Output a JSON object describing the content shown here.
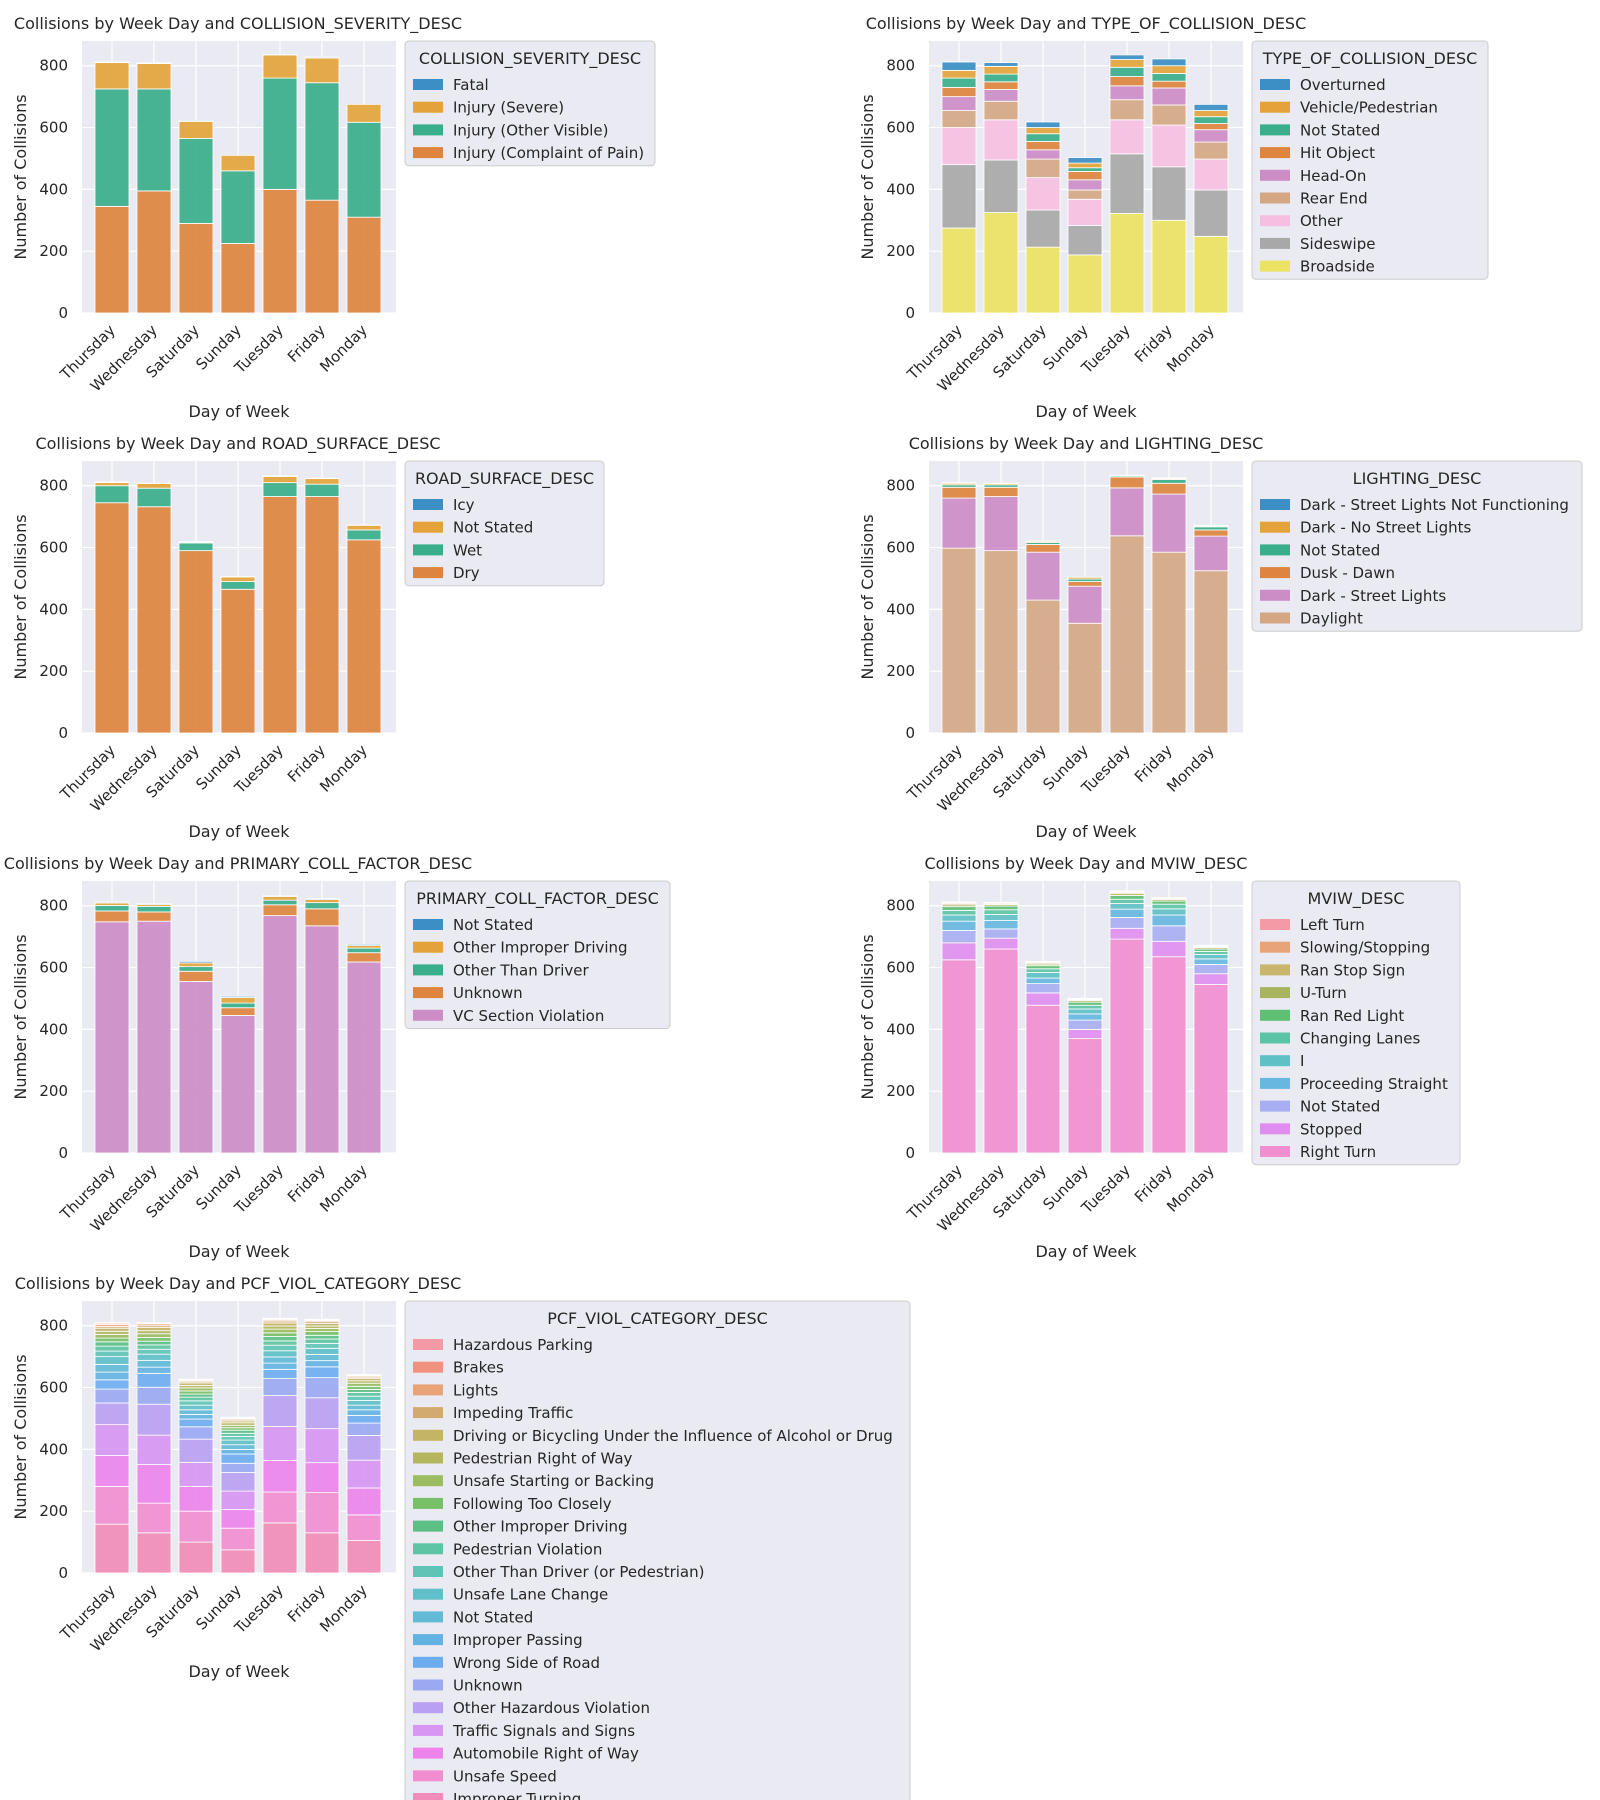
{
  "palette": {
    "severity": [
      "#3b8fc4",
      "#e3a33a",
      "#3aae8a",
      "#dd843f"
    ],
    "collision_type": [
      "#3b8fc4",
      "#e3a33a",
      "#3aae8a",
      "#dd843f",
      "#cc8dc7",
      "#d4a784",
      "#f6bfe2",
      "#a8a8a8",
      "#ece264"
    ],
    "surface": [
      "#3b8fc4",
      "#e3a33a",
      "#3aae8a",
      "#dd843f"
    ],
    "lighting": [
      "#3b8fc4",
      "#e3a33a",
      "#3aae8a",
      "#dd843f",
      "#cc8dc7",
      "#d4a784"
    ],
    "pcf": [
      "#3b8fc4",
      "#e3a33a",
      "#3aae8a",
      "#dd843f",
      "#cc8dc7"
    ],
    "mviw": [
      "#f39aa6",
      "#e8a378",
      "#c9b56e",
      "#a9b55e",
      "#5fbf73",
      "#5cc3a6",
      "#5fc0c6",
      "#67b7e0",
      "#a8aef2",
      "#df8ef0",
      "#f08ed0"
    ],
    "viol": [
      "#f39aa6",
      "#f1917f",
      "#e8a378",
      "#d2aa6f",
      "#c3b466",
      "#b3b65f",
      "#9bbc5f",
      "#77c068",
      "#5cbf86",
      "#5ec4a3",
      "#5fc4b6",
      "#60bfc8",
      "#62bad6",
      "#63b3e2",
      "#6eacf0",
      "#9aa9f2",
      "#b9a0f2",
      "#d696f2",
      "#ec84ec",
      "#f08ed0",
      "#f08cb6"
    ],
    "plot_bg": "#eaeaf2",
    "grid": "#ffffff",
    "legend_bg": "#eaeaf2",
    "legend_border": "#cccccc",
    "text": "#262626"
  },
  "chart_data": [
    {
      "type": "bar",
      "stacked": true,
      "title": "Collisions by Week Day and COLLISION_SEVERITY_DESC",
      "xlabel": "Day of Week",
      "ylabel": "Number of Collisions",
      "ylim": [
        0,
        880
      ],
      "yticks": [
        "0",
        "200",
        "400",
        "600",
        "800"
      ],
      "categories": [
        "Thursday",
        "Wednesday",
        "Saturday",
        "Sunday",
        "Tuesday",
        "Friday",
        "Monday"
      ],
      "legend_title": "COLLISION_SEVERITY_DESC",
      "legend_position": "right",
      "legend": [
        "Fatal",
        "Injury (Severe)",
        "Injury (Other Visible)",
        "Injury (Complaint of Pain)"
      ],
      "series": [
        {
          "name": "Injury (Complaint of Pain)",
          "values": [
            345,
            395,
            290,
            225,
            400,
            365,
            310
          ]
        },
        {
          "name": "Injury (Other Visible)",
          "values": [
            380,
            330,
            275,
            235,
            360,
            380,
            307
          ]
        },
        {
          "name": "Injury (Severe)",
          "values": [
            85,
            82,
            55,
            50,
            75,
            80,
            58
          ]
        },
        {
          "name": "Fatal",
          "values": [
            2,
            2,
            3,
            0,
            2,
            3,
            0
          ]
        }
      ]
    },
    {
      "type": "bar",
      "stacked": true,
      "title": "Collisions by Week Day and TYPE_OF_COLLISION_DESC",
      "xlabel": "Day of Week",
      "ylabel": "Number of Collisions",
      "ylim": [
        0,
        880
      ],
      "yticks": [
        "0",
        "200",
        "400",
        "600",
        "800"
      ],
      "categories": [
        "Thursday",
        "Wednesday",
        "Saturday",
        "Sunday",
        "Tuesday",
        "Friday",
        "Monday"
      ],
      "legend_title": "TYPE_OF_COLLISION_DESC",
      "legend_position": "right",
      "legend": [
        "Overturned",
        "Vehicle/Pedestrian",
        "Not Stated",
        "Hit Object",
        "Head-On",
        "Rear End",
        "Other",
        "Sideswipe",
        "Broadside"
      ],
      "series": [
        {
          "name": "Broadside",
          "values": [
            275,
            325,
            213,
            188,
            322,
            300,
            248
          ]
        },
        {
          "name": "Sideswipe",
          "values": [
            205,
            170,
            120,
            95,
            193,
            173,
            150
          ]
        },
        {
          "name": "Other",
          "values": [
            120,
            130,
            105,
            85,
            110,
            135,
            100
          ]
        },
        {
          "name": "Rear End",
          "values": [
            55,
            60,
            60,
            30,
            65,
            65,
            55
          ]
        },
        {
          "name": "Head-On",
          "values": [
            45,
            38,
            30,
            33,
            45,
            55,
            40
          ]
        },
        {
          "name": "Hit Object",
          "values": [
            30,
            25,
            27,
            27,
            30,
            22,
            20
          ]
        },
        {
          "name": "Not Stated",
          "values": [
            30,
            25,
            25,
            12,
            30,
            25,
            22
          ]
        },
        {
          "name": "Vehicle/Pedestrian",
          "values": [
            25,
            25,
            20,
            15,
            25,
            25,
            20
          ]
        },
        {
          "name": "Overturned",
          "values": [
            27,
            12,
            18,
            18,
            15,
            22,
            20
          ]
        }
      ]
    },
    {
      "type": "bar",
      "stacked": true,
      "title": "Collisions by Week Day and ROAD_SURFACE_DESC",
      "xlabel": "Day of Week",
      "ylabel": "Number of Collisions",
      "ylim": [
        0,
        880
      ],
      "yticks": [
        "0",
        "200",
        "400",
        "600",
        "800"
      ],
      "categories": [
        "Thursday",
        "Wednesday",
        "Saturday",
        "Sunday",
        "Tuesday",
        "Friday",
        "Monday"
      ],
      "legend_title": "ROAD_SURFACE_DESC",
      "legend_position": "right",
      "legend": [
        "Icy",
        "Not Stated",
        "Wet",
        "Dry"
      ],
      "series": [
        {
          "name": "Dry",
          "values": [
            745,
            732,
            590,
            465,
            765,
            765,
            625
          ]
        },
        {
          "name": "Wet",
          "values": [
            55,
            60,
            25,
            25,
            45,
            40,
            32
          ]
        },
        {
          "name": "Not Stated",
          "values": [
            10,
            15,
            3,
            15,
            20,
            18,
            15
          ]
        },
        {
          "name": "Icy",
          "values": [
            2,
            1,
            2,
            1,
            2,
            1,
            1
          ]
        }
      ]
    },
    {
      "type": "bar",
      "stacked": true,
      "title": "Collisions by Week Day and LIGHTING_DESC",
      "xlabel": "Day of Week",
      "ylabel": "Number of Collisions",
      "ylim": [
        0,
        880
      ],
      "yticks": [
        "0",
        "200",
        "400",
        "600",
        "800"
      ],
      "categories": [
        "Thursday",
        "Wednesday",
        "Saturday",
        "Sunday",
        "Tuesday",
        "Friday",
        "Monday"
      ],
      "legend_title": "LIGHTING_DESC",
      "legend_position": "right",
      "legend": [
        "Dark - Street Lights Not Functioning",
        "Dark - No Street Lights",
        "Not Stated",
        "Dusk - Dawn",
        "Dark - Street Lights",
        "Daylight"
      ],
      "series": [
        {
          "name": "Daylight",
          "values": [
            598,
            590,
            430,
            355,
            638,
            585,
            525
          ]
        },
        {
          "name": "Dark - Street Lights",
          "values": [
            162,
            175,
            155,
            120,
            155,
            188,
            112
          ]
        },
        {
          "name": "Dusk - Dawn",
          "values": [
            35,
            30,
            25,
            15,
            35,
            35,
            20
          ]
        },
        {
          "name": "Not Stated",
          "values": [
            8,
            8,
            6,
            8,
            4,
            12,
            10
          ]
        },
        {
          "name": "Dark - No Street Lights",
          "values": [
            5,
            4,
            4,
            6,
            1,
            3,
            3
          ]
        },
        {
          "name": "Dark - Street Lights Not Functioning",
          "values": [
            2,
            1,
            1,
            3,
            1,
            2,
            2
          ]
        }
      ]
    },
    {
      "type": "bar",
      "stacked": true,
      "title": "Collisions by Week Day and PRIMARY_COLL_FACTOR_DESC",
      "xlabel": "Day of Week",
      "ylabel": "Number of Collisions",
      "ylim": [
        0,
        880
      ],
      "yticks": [
        "0",
        "200",
        "400",
        "600",
        "800"
      ],
      "categories": [
        "Thursday",
        "Wednesday",
        "Saturday",
        "Sunday",
        "Tuesday",
        "Friday",
        "Monday"
      ],
      "legend_title": "PRIMARY_COLL_FACTOR_DESC",
      "legend_position": "right",
      "legend": [
        "Not Stated",
        "Other Improper Driving",
        "Other Than Driver",
        "Unknown",
        "VC Section Violation"
      ],
      "series": [
        {
          "name": "VC Section Violation",
          "values": [
            748,
            750,
            555,
            445,
            768,
            735,
            618
          ]
        },
        {
          "name": "Unknown",
          "values": [
            35,
            30,
            33,
            25,
            35,
            55,
            30
          ]
        },
        {
          "name": "Other Than Driver",
          "values": [
            18,
            18,
            15,
            15,
            15,
            20,
            15
          ]
        },
        {
          "name": "Other Improper Driving",
          "values": [
            8,
            6,
            12,
            18,
            12,
            10,
            8
          ]
        },
        {
          "name": "Not Stated",
          "values": [
            3,
            3,
            5,
            4,
            3,
            3,
            4
          ]
        }
      ]
    },
    {
      "type": "bar",
      "stacked": true,
      "title": "Collisions by Week Day and MVIW_DESC",
      "xlabel": "Day of Week",
      "ylabel": "Number of Collisions",
      "ylim": [
        0,
        880
      ],
      "yticks": [
        "0",
        "200",
        "400",
        "600",
        "800"
      ],
      "categories": [
        "Thursday",
        "Wednesday",
        "Saturday",
        "Sunday",
        "Tuesday",
        "Friday",
        "Monday"
      ],
      "legend_title": "MVIW_DESC",
      "legend_position": "right",
      "legend": [
        "Left Turn",
        "Slowing/Stopping",
        "Ran Stop Sign",
        "U-Turn",
        "Ran Red Light",
        "Changing Lanes",
        "I",
        "Proceeding Straight",
        "Not Stated",
        "Stopped",
        "Right Turn"
      ],
      "series": [
        {
          "name": "Right Turn",
          "values": [
            625,
            660,
            478,
            370,
            692,
            635,
            545
          ]
        },
        {
          "name": "Stopped",
          "values": [
            55,
            35,
            40,
            30,
            35,
            50,
            35
          ]
        },
        {
          "name": "Not Stated",
          "values": [
            40,
            30,
            30,
            30,
            35,
            50,
            30
          ]
        },
        {
          "name": "Proceeding Straight",
          "values": [
            30,
            27,
            18,
            20,
            27,
            35,
            18
          ]
        },
        {
          "name": "I",
          "values": [
            20,
            20,
            18,
            16,
            18,
            20,
            14
          ]
        },
        {
          "name": "Changing Lanes",
          "values": [
            15,
            15,
            12,
            12,
            14,
            15,
            10
          ]
        },
        {
          "name": "Ran Red Light",
          "values": [
            12,
            12,
            10,
            10,
            12,
            10,
            8
          ]
        },
        {
          "name": "U-Turn",
          "values": [
            6,
            5,
            5,
            5,
            6,
            5,
            5
          ]
        },
        {
          "name": "Ran Stop Sign",
          "values": [
            4,
            3,
            4,
            3,
            4,
            3,
            3
          ]
        },
        {
          "name": "Slowing/Stopping",
          "values": [
            3,
            3,
            3,
            2,
            3,
            2,
            2
          ]
        },
        {
          "name": "Left Turn",
          "values": [
            2,
            1,
            2,
            2,
            2,
            1,
            2
          ]
        }
      ]
    },
    {
      "type": "bar",
      "stacked": true,
      "title": "Collisions by Week Day and PCF_VIOL_CATEGORY_DESC",
      "xlabel": "Day of Week",
      "ylabel": "Number of Collisions",
      "ylim": [
        0,
        880
      ],
      "yticks": [
        "0",
        "200",
        "400",
        "600",
        "800"
      ],
      "categories": [
        "Thursday",
        "Wednesday",
        "Saturday",
        "Sunday",
        "Tuesday",
        "Friday",
        "Monday"
      ],
      "legend_title": "PCF_VIOL_CATEGORY_DESC",
      "legend_position": "right",
      "legend": [
        "Hazardous Parking",
        "Brakes",
        "Lights",
        "Impeding Traffic",
        "Driving or Bicycling Under the Influence of Alcohol or Drug",
        "Pedestrian Right of Way",
        "Unsafe Starting or Backing",
        "Following Too Closely",
        "Other Improper Driving",
        "Pedestrian Violation",
        "Other Than Driver (or Pedestrian)",
        "Unsafe Lane Change",
        "Not Stated",
        "Improper Passing",
        "Wrong Side of Road",
        "Unknown",
        "Other Hazardous Violation",
        "Traffic Signals and Signs",
        "Automobile Right of Way",
        "Unsafe Speed",
        "Improper Turning"
      ],
      "series": [
        {
          "name": "Improper Turning",
          "values": [
            158,
            130,
            100,
            75,
            162,
            130,
            105
          ]
        },
        {
          "name": "Unsafe Speed",
          "values": [
            122,
            96,
            100,
            70,
            100,
            130,
            83
          ]
        },
        {
          "name": "Automobile Right of Way",
          "values": [
            100,
            125,
            80,
            60,
            102,
            97,
            87
          ]
        },
        {
          "name": "Traffic Signals and Signs",
          "values": [
            100,
            95,
            78,
            60,
            110,
            110,
            90
          ]
        },
        {
          "name": "Other Hazardous Violation",
          "values": [
            70,
            100,
            75,
            60,
            100,
            100,
            80
          ]
        },
        {
          "name": "Unknown",
          "values": [
            45,
            55,
            40,
            30,
            55,
            65,
            40
          ]
        },
        {
          "name": "Wrong Side of Road",
          "values": [
            30,
            45,
            25,
            30,
            30,
            35,
            25
          ]
        },
        {
          "name": "Improper Passing",
          "values": [
            25,
            20,
            15,
            15,
            20,
            20,
            18
          ]
        },
        {
          "name": "Not Stated",
          "values": [
            25,
            22,
            15,
            15,
            20,
            20,
            15
          ]
        },
        {
          "name": "Unsafe Lane Change",
          "values": [
            25,
            20,
            15,
            15,
            20,
            20,
            15
          ]
        },
        {
          "name": "Other Than Driver (or Pedestrian)",
          "values": [
            18,
            16,
            14,
            12,
            18,
            16,
            14
          ]
        },
        {
          "name": "Pedestrian Violation",
          "values": [
            16,
            14,
            12,
            10,
            14,
            14,
            12
          ]
        },
        {
          "name": "Other Improper Driving",
          "values": [
            14,
            12,
            10,
            10,
            14,
            12,
            10
          ]
        },
        {
          "name": "Following Too Closely",
          "values": [
            12,
            12,
            10,
            8,
            12,
            12,
            10
          ]
        },
        {
          "name": "Unsafe Starting or Backing",
          "values": [
            12,
            12,
            10,
            8,
            12,
            10,
            10
          ]
        },
        {
          "name": "Pedestrian Right of Way",
          "values": [
            10,
            10,
            8,
            8,
            10,
            8,
            8
          ]
        },
        {
          "name": "Driving or Bicycling Under the Influence of Alcohol or Drug",
          "values": [
            10,
            10,
            8,
            6,
            10,
            8,
            8
          ]
        },
        {
          "name": "Impeding Traffic",
          "values": [
            6,
            6,
            4,
            4,
            6,
            6,
            4
          ]
        },
        {
          "name": "Lights",
          "values": [
            6,
            6,
            4,
            4,
            4,
            4,
            4
          ]
        },
        {
          "name": "Brakes",
          "values": [
            4,
            2,
            2,
            2,
            3,
            2,
            2
          ]
        },
        {
          "name": "Hazardous Parking",
          "values": [
            2,
            2,
            2,
            2,
            2,
            2,
            2
          ]
        }
      ]
    }
  ]
}
